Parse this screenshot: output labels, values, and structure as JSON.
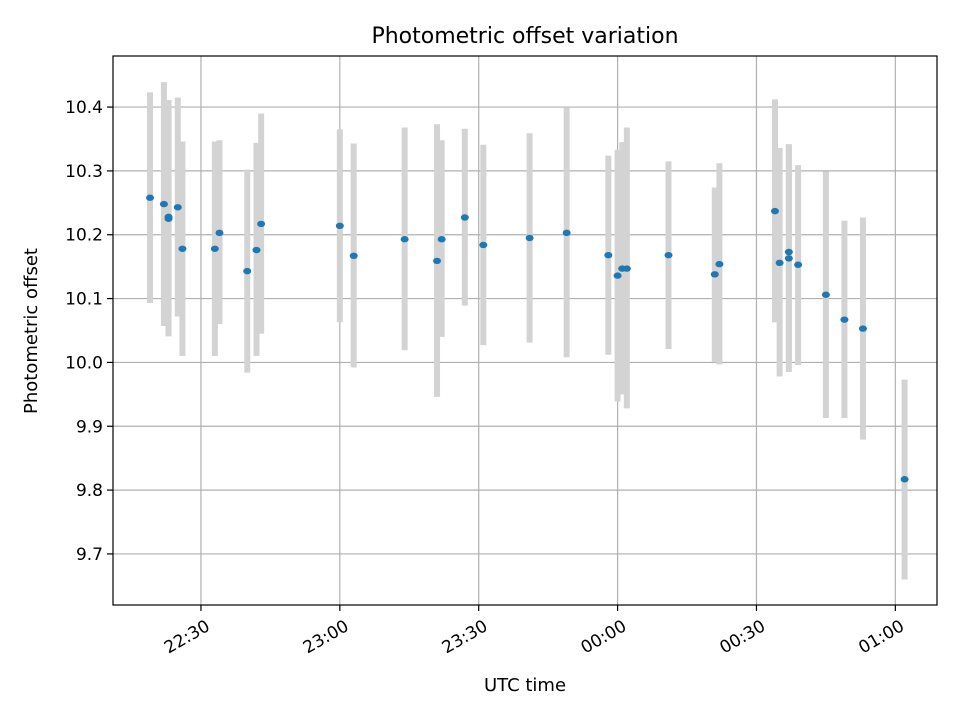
{
  "chart_data": {
    "type": "scatter",
    "title": "Photometric offset variation",
    "xlabel": "UTC time",
    "ylabel": "Photometric offset",
    "x_unit": "UTC time (clock time, midnight crossing between 23:59 and 00:00)",
    "xlim": [
      "22:11",
      "01:09"
    ],
    "ylim": [
      9.62,
      10.48
    ],
    "grid": true,
    "x_ticks": [
      "22:30",
      "23:00",
      "23:30",
      "00:00",
      "00:30",
      "01:00"
    ],
    "y_ticks": [
      9.7,
      9.8,
      9.9,
      10.0,
      10.1,
      10.2,
      10.3,
      10.4
    ],
    "marker_color": "#1f77b4",
    "errorbar_color": "#d3d3d3",
    "series": [
      {
        "points": [
          {
            "x": "22:19",
            "y": 10.258,
            "ylo": 10.093,
            "yhi": 10.423
          },
          {
            "x": "22:22",
            "y": 10.248,
            "ylo": 10.057,
            "yhi": 10.439
          },
          {
            "x": "22:23",
            "y": 10.225,
            "ylo": 10.041,
            "yhi": 10.411
          },
          {
            "x": "22:23",
            "y": 10.228,
            "ylo": 10.041,
            "yhi": 10.411
          },
          {
            "x": "22:25",
            "y": 10.243,
            "ylo": 10.072,
            "yhi": 10.415
          },
          {
            "x": "22:26",
            "y": 10.178,
            "ylo": 10.01,
            "yhi": 10.346
          },
          {
            "x": "22:33",
            "y": 10.178,
            "ylo": 10.01,
            "yhi": 10.346
          },
          {
            "x": "22:34",
            "y": 10.203,
            "ylo": 10.06,
            "yhi": 10.348
          },
          {
            "x": "22:40",
            "y": 10.143,
            "ylo": 9.984,
            "yhi": 10.302
          },
          {
            "x": "22:42",
            "y": 10.176,
            "ylo": 10.01,
            "yhi": 10.344
          },
          {
            "x": "22:43",
            "y": 10.217,
            "ylo": 10.045,
            "yhi": 10.39
          },
          {
            "x": "23:00",
            "y": 10.214,
            "ylo": 10.063,
            "yhi": 10.365
          },
          {
            "x": "23:03",
            "y": 10.167,
            "ylo": 9.992,
            "yhi": 10.343
          },
          {
            "x": "23:14",
            "y": 10.193,
            "ylo": 10.019,
            "yhi": 10.368
          },
          {
            "x": "23:21",
            "y": 10.159,
            "ylo": 9.946,
            "yhi": 10.373
          },
          {
            "x": "23:22",
            "y": 10.193,
            "ylo": 10.04,
            "yhi": 10.348
          },
          {
            "x": "23:27",
            "y": 10.227,
            "ylo": 10.089,
            "yhi": 10.366
          },
          {
            "x": "23:31",
            "y": 10.184,
            "ylo": 10.027,
            "yhi": 10.341
          },
          {
            "x": "23:41",
            "y": 10.195,
            "ylo": 10.031,
            "yhi": 10.359
          },
          {
            "x": "23:49",
            "y": 10.203,
            "ylo": 10.008,
            "yhi": 10.399
          },
          {
            "x": "23:58",
            "y": 10.168,
            "ylo": 10.012,
            "yhi": 10.324
          },
          {
            "x": "00:00",
            "y": 10.136,
            "ylo": 9.939,
            "yhi": 10.333
          },
          {
            "x": "00:01",
            "y": 10.147,
            "ylo": 9.95,
            "yhi": 10.345
          },
          {
            "x": "00:02",
            "y": 10.147,
            "ylo": 9.928,
            "yhi": 10.368
          },
          {
            "x": "00:11",
            "y": 10.168,
            "ylo": 10.021,
            "yhi": 10.315
          },
          {
            "x": "00:21",
            "y": 10.138,
            "ylo": 10.001,
            "yhi": 10.274
          },
          {
            "x": "00:22",
            "y": 10.154,
            "ylo": 9.997,
            "yhi": 10.312
          },
          {
            "x": "00:34",
            "y": 10.237,
            "ylo": 10.063,
            "yhi": 10.412
          },
          {
            "x": "00:35",
            "y": 10.156,
            "ylo": 9.978,
            "yhi": 10.336
          },
          {
            "x": "00:37",
            "y": 10.163,
            "ylo": 9.985,
            "yhi": 10.341
          },
          {
            "x": "00:37",
            "y": 10.173,
            "ylo": 10.003,
            "yhi": 10.342
          },
          {
            "x": "00:39",
            "y": 10.153,
            "ylo": 9.996,
            "yhi": 10.309
          },
          {
            "x": "00:45",
            "y": 10.106,
            "ylo": 9.913,
            "yhi": 10.299
          },
          {
            "x": "00:49",
            "y": 10.067,
            "ylo": 9.913,
            "yhi": 10.222
          },
          {
            "x": "00:53",
            "y": 10.053,
            "ylo": 9.879,
            "yhi": 10.227
          },
          {
            "x": "01:02",
            "y": 9.817,
            "ylo": 9.66,
            "yhi": 9.973
          }
        ]
      }
    ]
  }
}
